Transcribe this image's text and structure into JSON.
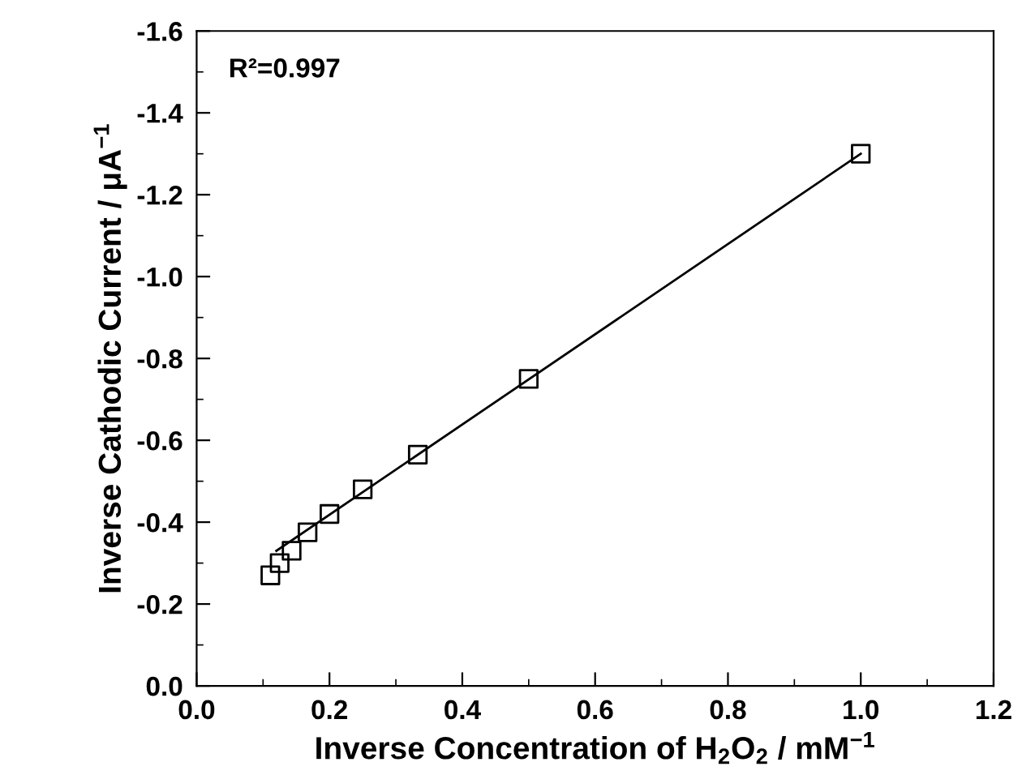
{
  "chart_data": {
    "type": "scatter",
    "xlabel": "Inverse Concentration of H$_{2}$O$_{2}$ / mM$^{−1}$",
    "ylabel": "Inverse Cathodic Current / μA$^{−1}$",
    "annotations": [
      "R²=0.997"
    ],
    "series": [
      {
        "color": "#000000",
        "marker": "square",
        "x": [
          0.111,
          0.125,
          0.143,
          0.167,
          0.2,
          0.25,
          0.333,
          0.5,
          1.0
        ],
        "values": [
          -0.27,
          -0.3,
          -0.33,
          -0.375,
          -0.42,
          -0.48,
          -0.565,
          -0.75,
          -1.3
        ]
      },
      {
        "type": "line",
        "color": "#000000",
        "marker": "none",
        "line_style": "solid",
        "x": [
          0.12,
          1.0
        ],
        "values": [
          -0.33,
          -1.3
        ]
      }
    ],
    "xlim": [
      0.0,
      1.2
    ],
    "xticks": [
      {
        "value": 0,
        "label": "0.0"
      },
      0.2,
      0.4,
      0.6,
      0.8,
      {
        "value": 1,
        "label": "1.0"
      },
      1.2
    ],
    "ylim": [
      0.0,
      -1.6
    ],
    "yticks": [
      {
        "value": 0,
        "label": "0.0"
      },
      -0.2,
      -0.4,
      -0.6,
      -0.8,
      {
        "value": -1,
        "label": "-1.0"
      },
      -1.2,
      -1.4,
      -1.6
    ],
    "grid": false,
    "legend": false
  }
}
